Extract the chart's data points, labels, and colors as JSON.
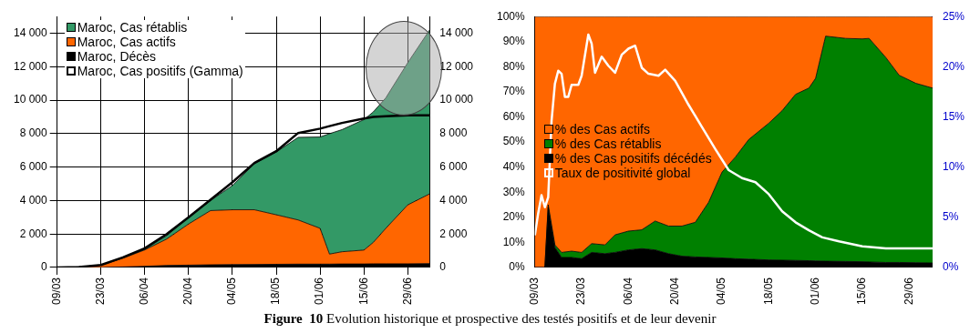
{
  "chart_data": [
    {
      "type": "area",
      "stacked": true,
      "grid": true,
      "legend": "top left",
      "x": [
        "--03-09",
        "--03-16",
        "--03-23",
        "--03-30",
        "--04-06",
        "--04-13",
        "--04-20",
        "--04-27",
        "--05-04",
        "--05-11",
        "--05-18",
        "--05-25",
        "--06-01",
        "--06-04",
        "--06-08",
        "--06-15",
        "--06-18",
        "--06-22",
        "--06-29",
        "--07-06"
      ],
      "xlim": [
        "--03-09",
        "--07-06"
      ],
      "xticks": [
        {
          "value": "--03-09",
          "label": "09/03"
        },
        {
          "value": "--03-23",
          "label": "23/03"
        },
        {
          "value": "--04-06",
          "label": "06/04"
        },
        {
          "value": "--04-20",
          "label": "20/04"
        },
        {
          "value": "--05-04",
          "label": "04/05"
        },
        {
          "value": "--05-18",
          "label": "18/05"
        },
        {
          "value": "--06-01",
          "label": "01/06"
        },
        {
          "value": "--06-15",
          "label": "15/06"
        },
        {
          "value": "--06-29",
          "label": "29/06"
        }
      ],
      "ylim": [
        0,
        15000
      ],
      "yticks": [
        0,
        {
          "value": 2000,
          "label": "2 000"
        },
        {
          "value": 4000,
          "label": "4 000"
        },
        {
          "value": 6000,
          "label": "6 000"
        },
        {
          "value": 8000,
          "label": "8 000"
        },
        {
          "value": 10000,
          "label": "10 000"
        },
        {
          "value": 12000,
          "label": "12 000"
        },
        {
          "value": 14000,
          "label": "14 000"
        }
      ],
      "y2lim": [
        0,
        15000
      ],
      "y2ticks": [
        0,
        {
          "value": 2000,
          "label": "2 000"
        },
        {
          "value": 4000,
          "label": "4 000"
        },
        {
          "value": 6000,
          "label": "6 000"
        },
        {
          "value": 8000,
          "label": "8 000"
        },
        {
          "value": 10000,
          "label": "10 000"
        },
        {
          "value": 12000,
          "label": "12 000"
        },
        {
          "value": 14000,
          "label": "14 000"
        }
      ],
      "series": [
        {
          "name": "Maroc, Décès",
          "color": "#000000",
          "values": [
            0,
            0,
            0,
            30,
            70,
            120,
            140,
            160,
            170,
            180,
            190,
            200,
            200,
            200,
            210,
            210,
            220,
            220,
            220,
            230
          ]
        },
        {
          "name": "Maroc, Cas actifs",
          "color": "#ff6600",
          "values": [
            0,
            30,
            140,
            520,
            980,
            1580,
            2460,
            3240,
            3280,
            3270,
            2960,
            2640,
            2140,
            600,
            730,
            830,
            1280,
            2120,
            3520,
            4170
          ]
        },
        {
          "name": "Maroc, Cas rétablis",
          "color": "#339966",
          "values": [
            0,
            0,
            10,
            50,
            50,
            200,
            400,
            600,
            1450,
            2750,
            3750,
            4940,
            5460,
            7200,
            7300,
            7800,
            7800,
            7800,
            8500,
            9800
          ]
        },
        {
          "name": "Maroc, Cas positifs (Gamma)",
          "type": "line",
          "color": "#000000",
          "values": [
            0,
            30,
            150,
            600,
            1150,
            2000,
            3000,
            4050,
            5100,
            6250,
            6950,
            8040,
            8300,
            8450,
            8640,
            8900,
            9000,
            9040,
            9100,
            9100
          ]
        }
      ],
      "annotations": [
        "Figure  10",
        "Evolution historique et prospective des testés positifs et de leur devenir"
      ]
    },
    {
      "type": "area",
      "stacked": true,
      "legend": "left",
      "x": [
        "--03-09",
        "--03-12",
        "--03-13",
        "--03-15",
        "--03-17",
        "--03-20",
        "--03-23",
        "--03-26",
        "--03-30",
        "--04-02",
        "--04-06",
        "--04-10",
        "--04-14",
        "--04-18",
        "--04-22",
        "--04-26",
        "--04-30",
        "--05-04",
        "--05-08",
        "--05-12",
        "--05-18",
        "--05-22",
        "--05-26",
        "--05-30",
        "--06-01",
        "--06-04",
        "--06-10",
        "--06-15",
        "--06-17",
        "--06-22",
        "--06-26",
        "--07-01",
        "--07-06"
      ],
      "xlim": [
        "--03-09",
        "--07-06"
      ],
      "xticks": [
        {
          "value": "--03-09",
          "label": "09/03"
        },
        {
          "value": "--03-23",
          "label": "23/03"
        },
        {
          "value": "--04-06",
          "label": "06/04"
        },
        {
          "value": "--04-20",
          "label": "20/04"
        },
        {
          "value": "--05-04",
          "label": "04/05"
        },
        {
          "value": "--05-18",
          "label": "18/05"
        },
        {
          "value": "--06-01",
          "label": "01/06"
        },
        {
          "value": "--06-15",
          "label": "15/06"
        },
        {
          "value": "--06-29",
          "label": "29/06"
        }
      ],
      "ylim": [
        0,
        100
      ],
      "yticks": [
        {
          "value": 0,
          "label": "0%"
        },
        {
          "value": 10,
          "label": "10%"
        },
        {
          "value": 20,
          "label": "20%"
        },
        {
          "value": 30,
          "label": "30%"
        },
        {
          "value": 40,
          "label": "40%"
        },
        {
          "value": 50,
          "label": "50%"
        },
        {
          "value": 60,
          "label": "60%"
        },
        {
          "value": 70,
          "label": "70%"
        },
        {
          "value": 80,
          "label": "80%"
        },
        {
          "value": 90,
          "label": "90%"
        },
        {
          "value": 100,
          "label": "100%"
        }
      ],
      "y2lim": [
        0,
        25
      ],
      "y2ticks": [
        {
          "value": 0,
          "label": "0%"
        },
        {
          "value": 5,
          "label": "5%"
        },
        {
          "value": 10,
          "label": "10%"
        },
        {
          "value": 15,
          "label": "15%"
        },
        {
          "value": 20,
          "label": "20%"
        },
        {
          "value": 25,
          "label": "25%"
        }
      ],
      "series": [
        {
          "name": "% des Cas positifs décédés",
          "color": "#000000",
          "values": [
            0,
            0,
            24,
            8,
            4,
            4,
            3.5,
            6,
            5.5,
            6,
            7,
            7.5,
            7,
            5.5,
            4.5,
            4.2,
            4,
            3.8,
            3.5,
            3.3,
            3,
            2.9,
            2.8,
            2.7,
            2.6,
            2.5,
            2.4,
            2.3,
            2.2,
            2,
            2,
            1.9,
            1.8
          ]
        },
        {
          "name": "% des Cas rétablis",
          "color": "#008000",
          "values": [
            0,
            0,
            1,
            1,
            2,
            2.5,
            2.5,
            3.5,
            3.5,
            7,
            7.5,
            7.5,
            11.5,
            11,
            12,
            13.8,
            22,
            34.2,
            40.5,
            47.7,
            54.5,
            59.6,
            66.2,
            68.8,
            72.8,
            89.7,
            88.9,
            88.8,
            89.1,
            81.7,
            74.6,
            71.5,
            69.7
          ]
        },
        {
          "name": "% des Cas actifs",
          "color": "#ff6600",
          "values": [
            100,
            100,
            75,
            91,
            94,
            93.5,
            94,
            90.5,
            91,
            87,
            85.5,
            85,
            81.5,
            83.5,
            83.5,
            82,
            74,
            62,
            56,
            49,
            42.5,
            37.5,
            31,
            28.5,
            24.6,
            7.8,
            8.7,
            8.9,
            8.7,
            16.3,
            23.4,
            26.6,
            28.5
          ]
        },
        {
          "name": "Taux de positivité global",
          "type": "line",
          "axis": "y2",
          "color": "#ffffff",
          "x": [
            "--03-09",
            "--03-10",
            "--03-11",
            "--03-12",
            "--03-13",
            "--03-14",
            "--03-15",
            "--03-16",
            "--03-17",
            "--03-18",
            "--03-19",
            "--03-20",
            "--03-22",
            "--03-23",
            "--03-25",
            "--03-26",
            "--03-27",
            "--03-29",
            "--03-31",
            "--04-02",
            "--04-04",
            "--04-06",
            "--04-08",
            "--04-10",
            "--04-12",
            "--04-15",
            "--04-17",
            "--04-20",
            "--04-24",
            "--04-28",
            "--05-02",
            "--05-06",
            "--05-10",
            "--05-14",
            "--05-18",
            "--05-22",
            "--05-26",
            "--05-30",
            "--06-03",
            "--06-08",
            "--06-15",
            "--06-22",
            "--06-29",
            "--07-06"
          ],
          "values": [
            3.2,
            5.4,
            7.2,
            6.0,
            7.0,
            14.6,
            18.3,
            19.6,
            19.3,
            17.0,
            17.0,
            18.2,
            18.2,
            19.1,
            23.2,
            22.3,
            19.4,
            21.0,
            20.1,
            19.4,
            21.2,
            21.8,
            22.1,
            19.9,
            19.3,
            19.1,
            19.7,
            18.6,
            16.2,
            14.0,
            11.8,
            9.7,
            8.9,
            8.5,
            7.3,
            5.6,
            4.5,
            3.7,
            3.0,
            2.6,
            2.1,
            1.9,
            1.9,
            1.9
          ]
        }
      ]
    }
  ]
}
